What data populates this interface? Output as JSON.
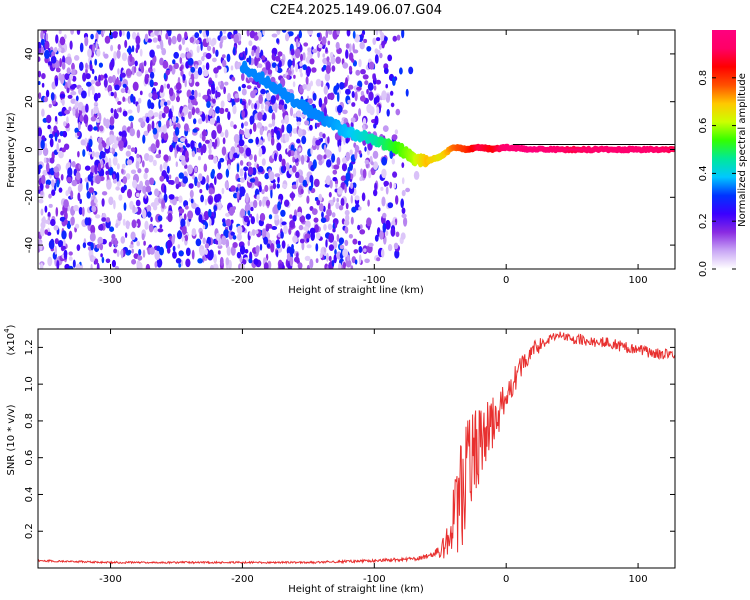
{
  "title": "C2E4.2025.149.06.07.G04",
  "colors": {
    "snr_line": "#e8302f",
    "ridge": "#5a1aa6",
    "background": "#ffffff"
  },
  "colorbar": {
    "label": "Normalized spectral amplitude",
    "ticks": [
      "0.0",
      "0.2",
      "0.4",
      "0.6",
      "0.8"
    ],
    "tick_values": [
      0.0,
      0.2,
      0.4,
      0.6,
      0.8
    ],
    "range": [
      0,
      1
    ],
    "colormap": [
      "#ffffff",
      "#c9a6f5",
      "#8a2be2",
      "#3a00ff",
      "#0033ff",
      "#00c8ff",
      "#00e89a",
      "#33ff00",
      "#ccff00",
      "#ffc800",
      "#ff5000",
      "#ff0000",
      "#ff0066",
      "#ff007f"
    ]
  },
  "chart_data": [
    {
      "type": "heatmap",
      "xlabel": "Height of straight line (km)",
      "ylabel": "Frequency (Hz)",
      "xlim": [
        -355,
        128
      ],
      "ylim": [
        -50,
        50
      ],
      "xticks": [
        -300,
        -200,
        -100,
        0,
        100
      ],
      "xtick_labels": [
        "-300",
        "-200",
        "-100",
        "0",
        "100"
      ],
      "yticks": [
        -40,
        -20,
        0,
        20,
        40
      ],
      "ytick_labels": [
        "-40",
        "-20",
        "0",
        "20",
        "40"
      ],
      "noise_region_x": [
        -355,
        -70
      ],
      "ridge": {
        "x": [
          -200,
          -180,
          -160,
          -140,
          -120,
          -100,
          -80,
          -70,
          -60,
          -50,
          -40,
          -30,
          -20,
          -10,
          0,
          20,
          50,
          80,
          100,
          128
        ],
        "y": [
          35,
          28,
          20,
          13,
          7,
          4,
          0,
          -4,
          -5,
          -3,
          1,
          0,
          1,
          0,
          1,
          0,
          0,
          0,
          0,
          0
        ],
        "amplitude": [
          0.35,
          0.35,
          0.35,
          0.35,
          0.38,
          0.45,
          0.55,
          0.6,
          0.7,
          0.65,
          0.75,
          0.8,
          0.9,
          0.85,
          0.95,
          1.0,
          0.9,
          0.95,
          0.95,
          0.9
        ]
      }
    },
    {
      "type": "line",
      "xlabel": "Height of straight line (km)",
      "ylabel": "SNR (10 * v/v)",
      "y_multiplier_label": "(x10",
      "y_multiplier_exp": "4",
      "xlim": [
        -355,
        128
      ],
      "ylim": [
        0,
        1.3
      ],
      "xticks": [
        -300,
        -200,
        -100,
        0,
        100
      ],
      "xtick_labels": [
        "-300",
        "-200",
        "-100",
        "0",
        "100"
      ],
      "yticks": [
        0.2,
        0.4,
        0.6,
        0.8,
        1.0,
        1.2
      ],
      "ytick_labels": [
        "0.2",
        "0.4",
        "0.6",
        "0.8",
        "1.0",
        "1.2"
      ],
      "series": [
        {
          "x": [
            -355,
            -300,
            -250,
            -200,
            -150,
            -100,
            -70,
            -55,
            -50,
            -45,
            -40,
            -35,
            -30,
            -25,
            -20,
            -15,
            -10,
            -5,
            0,
            5,
            10,
            20,
            30,
            40,
            50,
            60,
            70,
            80,
            90,
            100,
            110,
            128
          ],
          "y": [
            0.04,
            0.03,
            0.03,
            0.03,
            0.03,
            0.04,
            0.05,
            0.07,
            0.1,
            0.15,
            0.25,
            0.38,
            0.5,
            0.6,
            0.68,
            0.74,
            0.8,
            0.86,
            0.93,
            1.0,
            1.08,
            1.18,
            1.24,
            1.27,
            1.25,
            1.24,
            1.23,
            1.22,
            1.2,
            1.19,
            1.17,
            1.16
          ],
          "noise": [
            0.005,
            0.005,
            0.005,
            0.005,
            0.005,
            0.008,
            0.01,
            0.015,
            0.05,
            0.1,
            0.2,
            0.3,
            0.3,
            0.25,
            0.22,
            0.18,
            0.15,
            0.12,
            0.1,
            0.08,
            0.06,
            0.05,
            0.03,
            0.02,
            0.03,
            0.03,
            0.03,
            0.03,
            0.03,
            0.03,
            0.03,
            0.03
          ]
        }
      ]
    }
  ]
}
